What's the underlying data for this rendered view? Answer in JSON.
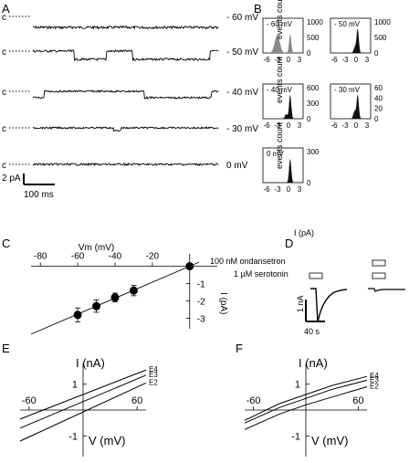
{
  "panels": {
    "a": {
      "letter": "A",
      "closed_label": "c",
      "traces": [
        {
          "voltage": "- 60 mV",
          "open_amp": 12,
          "noise": 1.4,
          "kind": "open"
        },
        {
          "voltage": "- 50 mV",
          "open_amp": 9,
          "noise": 1.2,
          "kind": "open"
        },
        {
          "voltage": "- 40 mV",
          "open_amp": 7,
          "noise": 1.0,
          "kind": "open"
        },
        {
          "voltage": "- 30 mV",
          "open_amp": 3,
          "noise": 0.9,
          "kind": "sparse"
        },
        {
          "voltage": "0 mV",
          "open_amp": 0,
          "noise": 1.1,
          "kind": "flat"
        }
      ],
      "scale_current": "2 pA",
      "scale_time": "100 ms"
    },
    "b": {
      "letter": "B",
      "ylabel": "events count",
      "xlabel": "I (pA)",
      "xticks": [
        "-6",
        "-3",
        "0",
        "3"
      ],
      "histograms": [
        {
          "label": "- 60 mV",
          "yticks": [
            "1000",
            "500",
            "0"
          ],
          "shade": "#8a8a8a"
        },
        {
          "label": "- 50 mV",
          "yticks": [
            "1000",
            "500",
            "0"
          ],
          "shade": "#111111"
        },
        {
          "label": "- 40 mV",
          "yticks": [
            "600",
            "300",
            "0"
          ],
          "shade": "#111111"
        },
        {
          "label": "- 30 mV",
          "yticks": [
            "60",
            "40",
            "20",
            "0"
          ],
          "shade": "#111111"
        },
        {
          "label": "0 mV",
          "yticks": [
            "300",
            "0"
          ],
          "shade": "#111111"
        }
      ]
    },
    "c": {
      "letter": "C",
      "xlabel": "Vm (mV)",
      "ylabel": "I (pA)",
      "xticks": [
        "-80",
        "-60",
        "-40",
        "-20"
      ],
      "yticks": [
        "-1",
        "-2",
        "-3"
      ],
      "chart_data": {
        "type": "scatter",
        "x": [
          -60,
          -50,
          -40,
          -30,
          0
        ],
        "y": [
          -2.8,
          -2.3,
          -1.8,
          -1.4,
          0
        ],
        "error": [
          0.4,
          0.35,
          0.25,
          0.3,
          0
        ],
        "xlim": [
          -85,
          5
        ],
        "ylim": [
          -3.6,
          0.5
        ],
        "fit": {
          "slope": 0.046,
          "intercept": 0
        }
      }
    },
    "d": {
      "letter": "D",
      "label_ondansetron": "100 nM ondansetron",
      "label_serotonin": "1 µM serotonin",
      "scale_current": "1 nA",
      "scale_time": "40 s"
    },
    "e": {
      "letter": "E",
      "ylabel": "I (nA)",
      "xlabel": "V (mV)",
      "xticks": [
        "-60",
        "60"
      ],
      "yticks": [
        "1",
        "-1"
      ],
      "chart_data": {
        "type": "line",
        "xlim": [
          -70,
          70
        ],
        "ylim": [
          -1.8,
          1.8
        ],
        "series": [
          {
            "name": "E4",
            "x": [
              -70,
              70
            ],
            "y": [
              -0.35,
              1.55
            ]
          },
          {
            "name": "E3",
            "x": [
              -70,
              70
            ],
            "y": [
              -0.7,
              1.35
            ]
          },
          {
            "name": "E2",
            "x": [
              -70,
              70
            ],
            "y": [
              -1.2,
              1.05
            ]
          }
        ]
      }
    },
    "f": {
      "letter": "F",
      "ylabel": "I (nA)",
      "xlabel": "V (mV)",
      "xticks": [
        "-60",
        "60"
      ],
      "yticks": [
        "1",
        "-1"
      ],
      "chart_data": {
        "type": "line",
        "xlim": [
          -70,
          70
        ],
        "ylim": [
          -1.8,
          1.8
        ],
        "series": [
          {
            "name": "E4",
            "x": [
              -70,
              -30,
              0,
              30,
              70
            ],
            "y": [
              -0.4,
              0.25,
              0.6,
              0.95,
              1.3
            ]
          },
          {
            "name": "E3",
            "x": [
              -70,
              -30,
              0,
              30,
              70
            ],
            "y": [
              -0.5,
              0.1,
              0.45,
              0.8,
              1.15
            ]
          },
          {
            "name": "E2",
            "x": [
              -70,
              -30,
              0,
              30,
              70
            ],
            "y": [
              -0.75,
              -0.15,
              0.2,
              0.5,
              0.9
            ]
          }
        ]
      }
    }
  }
}
